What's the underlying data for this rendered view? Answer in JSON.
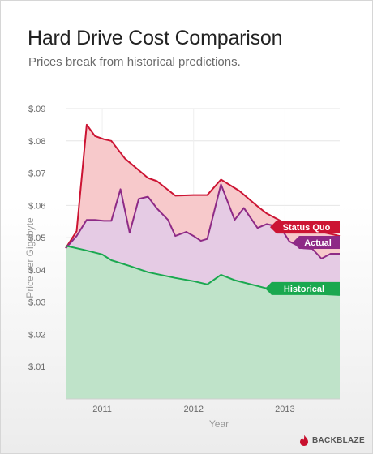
{
  "header": {
    "title": "Hard Drive Cost Comparison",
    "subtitle": "Prices break from historical predictions."
  },
  "brand": {
    "name": "BACKBLAZE",
    "icon": "flame-icon",
    "color": "#c8102e"
  },
  "chart_data": {
    "type": "area",
    "title": "Hard Drive Cost Comparison",
    "subtitle": "Prices break from historical predictions.",
    "xlabel": "Year",
    "ylabel": "Price per Gigabyte",
    "xlim": [
      2010.6,
      2013.6
    ],
    "ylim": [
      0,
      0.09
    ],
    "x_ticks": [
      {
        "value": 2011,
        "label": "2011"
      },
      {
        "value": 2012,
        "label": "2012"
      },
      {
        "value": 2013,
        "label": "2013"
      }
    ],
    "y_ticks": [
      {
        "value": 0.01,
        "label": "$.01"
      },
      {
        "value": 0.02,
        "label": "$.02"
      },
      {
        "value": 0.03,
        "label": "$.03"
      },
      {
        "value": 0.04,
        "label": "$.04"
      },
      {
        "value": 0.05,
        "label": "$.05"
      },
      {
        "value": 0.06,
        "label": "$.06"
      },
      {
        "value": 0.07,
        "label": "$.07"
      },
      {
        "value": 0.08,
        "label": "$.08"
      },
      {
        "value": 0.09,
        "label": "$.09"
      }
    ],
    "grid": true,
    "legend": "inline-right",
    "series": [
      {
        "name": "Status Quo",
        "color": "#cc1433",
        "fill": "#f7c9cb",
        "x": [
          2010.6,
          2010.72,
          2010.83,
          2010.92,
          2011.02,
          2011.1,
          2011.25,
          2011.5,
          2011.6,
          2011.8,
          2012.0,
          2012.15,
          2012.3,
          2012.5,
          2012.7,
          2012.8,
          2013.0,
          2013.2,
          2013.4,
          2013.6
        ],
        "y": [
          0.0467,
          0.052,
          0.085,
          0.0815,
          0.0805,
          0.08,
          0.0745,
          0.0685,
          0.0675,
          0.063,
          0.0632,
          0.0632,
          0.068,
          0.0645,
          0.0597,
          0.0575,
          0.0545,
          0.0532,
          0.0518,
          0.0505
        ]
      },
      {
        "name": "Actual",
        "color": "#8e2a86",
        "fill": "#e5cbe4",
        "x": [
          2010.6,
          2010.72,
          2010.83,
          2010.92,
          2011.02,
          2011.1,
          2011.2,
          2011.3,
          2011.4,
          2011.5,
          2011.6,
          2011.72,
          2011.8,
          2011.92,
          2012.0,
          2012.08,
          2012.15,
          2012.3,
          2012.45,
          2012.55,
          2012.7,
          2012.8,
          2012.95,
          2013.05,
          2013.2,
          2013.3,
          2013.4,
          2013.5,
          2013.6
        ],
        "y": [
          0.0467,
          0.0505,
          0.0555,
          0.0555,
          0.0552,
          0.0552,
          0.065,
          0.0515,
          0.062,
          0.0627,
          0.059,
          0.0555,
          0.0505,
          0.0518,
          0.0505,
          0.049,
          0.0496,
          0.0665,
          0.0555,
          0.0592,
          0.053,
          0.0542,
          0.0532,
          0.0488,
          0.0467,
          0.0465,
          0.0435,
          0.045,
          0.045
        ]
      },
      {
        "name": "Historical",
        "color": "#1aa84f",
        "fill": "#bfe3c9",
        "x": [
          2010.6,
          2010.8,
          2011.0,
          2011.1,
          2011.3,
          2011.5,
          2011.8,
          2012.0,
          2012.15,
          2012.3,
          2012.45,
          2012.7,
          2012.9,
          2013.0,
          2013.2,
          2013.4,
          2013.6
        ],
        "y": [
          0.0475,
          0.0462,
          0.0448,
          0.043,
          0.0412,
          0.0393,
          0.0375,
          0.0365,
          0.0355,
          0.0385,
          0.0368,
          0.035,
          0.0335,
          0.0332,
          0.0328,
          0.0325,
          0.0322
        ]
      }
    ]
  }
}
